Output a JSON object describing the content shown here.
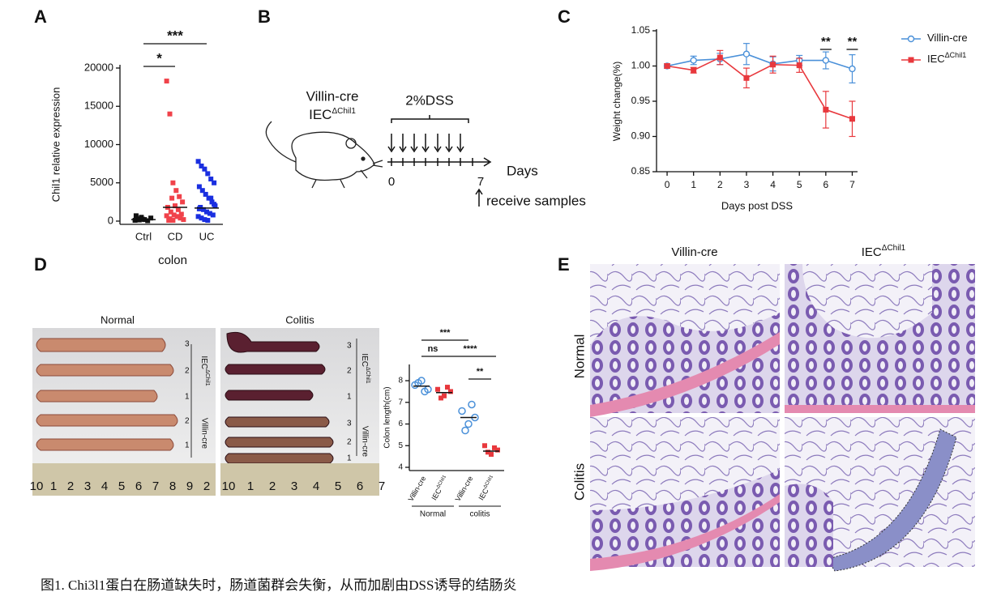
{
  "panel_labels": [
    "A",
    "B",
    "C",
    "D",
    "E"
  ],
  "chart_data": [
    {
      "type": "strip",
      "ylabel": "Chil1 relative expression",
      "xlabel": "colon",
      "categories": [
        "Ctrl",
        "CD",
        "UC"
      ],
      "colors": [
        "#111111",
        "#f0424a",
        "#1a2fe0"
      ],
      "points": [
        [
          100,
          300,
          500,
          200,
          50,
          400,
          700,
          150,
          250
        ],
        [
          18300,
          14000,
          5000,
          4000,
          3200,
          2500,
          1800,
          1200,
          800,
          600,
          400,
          200,
          100,
          3000,
          2000,
          1500,
          900,
          700,
          300,
          100
        ],
        [
          7800,
          7200,
          6800,
          6200,
          5500,
          5000,
          4500,
          4000,
          3500,
          3000,
          2500,
          2000,
          1800,
          1500,
          1200,
          1000,
          800,
          600,
          400,
          200,
          100,
          3000,
          2200,
          1600
        ]
      ],
      "means": [
        200,
        1800,
        1700
      ],
      "ylim": [
        0,
        20000
      ],
      "yticks": [
        0,
        5000,
        10000,
        15000,
        20000
      ],
      "annotations": [
        "*",
        "***"
      ]
    },
    {
      "type": "line",
      "xlabel": "Days post DSS",
      "ylabel": "Weight change(%)",
      "x": [
        0,
        1,
        2,
        3,
        4,
        5,
        6,
        7
      ],
      "xlim": [
        -0.4,
        7.2
      ],
      "xticks": [
        0,
        1,
        2,
        3,
        4,
        5,
        6,
        7
      ],
      "ylim": [
        0.85,
        1.05
      ],
      "yticks": [
        {
          "value": 0.85,
          "label": "0.85"
        },
        {
          "value": 0.9,
          "label": "0.90"
        },
        {
          "value": 0.95,
          "label": "0.95"
        },
        {
          "value": 1.0,
          "label": "1.00"
        },
        {
          "value": 1.05,
          "label": "1.05"
        }
      ],
      "series": [
        {
          "name": "Villin-cre",
          "color": "#4a90d9",
          "marker": "circle",
          "values": [
            1.0,
            1.008,
            1.01,
            1.017,
            1.003,
            1.008,
            1.008,
            0.996
          ],
          "errors": [
            0.003,
            0.006,
            0.008,
            0.015,
            0.01,
            0.007,
            0.012,
            0.02
          ]
        },
        {
          "name": "IEC",
          "name_sup": "ΔChil1",
          "color": "#e8383d",
          "marker": "square",
          "values": [
            1.0,
            0.994,
            1.012,
            0.983,
            1.002,
            1.001,
            0.938,
            0.925
          ],
          "errors": [
            0.003,
            0.004,
            0.01,
            0.014,
            0.012,
            0.01,
            0.026,
            0.025
          ]
        }
      ],
      "annotations": [
        {
          "x": 6,
          "text": "**"
        },
        {
          "x": 7,
          "text": "**"
        }
      ],
      "legend": "upper right"
    },
    {
      "type": "strip",
      "ylabel": "Colon length(cm)",
      "categories": [
        {
          "label": "Villin-cre"
        },
        {
          "label": "IEC",
          "sup": "ΔChil1"
        },
        {
          "label": "Villin-cre"
        },
        {
          "label": "IEC",
          "sup": "ΔChil1"
        }
      ],
      "groups": [
        "Normal",
        "colitis"
      ],
      "colors": [
        "#4a90d9",
        "#e8383d",
        "#4a90d9",
        "#e8383d"
      ],
      "markers": [
        "circle",
        "square",
        "circle",
        "square"
      ],
      "points": [
        [
          7.8,
          8.0,
          7.6,
          7.9,
          7.5
        ],
        [
          7.6,
          7.3,
          7.5,
          7.2,
          7.7
        ],
        [
          6.6,
          6.0,
          6.3,
          5.7,
          6.9
        ],
        [
          5.0,
          4.6,
          4.8,
          4.7,
          4.9
        ]
      ],
      "means": [
        7.75,
        7.45,
        6.3,
        4.75
      ],
      "ylim": [
        4,
        8.6
      ],
      "yticks": [
        4,
        5,
        6,
        7,
        8
      ],
      "annotations": [
        "***",
        "ns",
        "****",
        "**"
      ]
    }
  ],
  "panel_b": {
    "line1": "Villin-cre",
    "line2": "IEC",
    "line2_sup": "ΔChil1",
    "treatment": "2%DSS",
    "timeline_start": "0",
    "timeline_end": "7",
    "timeline_unit": "Days",
    "endpoint": "receive samples"
  },
  "panel_d_photos": {
    "titles": [
      "Normal",
      "Colitis"
    ],
    "left_numbers": [
      "3",
      "2",
      "1",
      "2",
      "1"
    ],
    "right_numbers": [
      "3",
      "2",
      "1",
      "3",
      "2",
      "1"
    ],
    "genotype_label": "IEC",
    "genotype_sup": "ΔChil1",
    "control_label": "Villin-cre",
    "ruler_left": [
      "10",
      "1",
      "2",
      "3",
      "4",
      "5",
      "6",
      "7",
      "8",
      "9",
      "2"
    ],
    "ruler_right": [
      "10",
      "1",
      "2",
      "3",
      "4",
      "5",
      "6",
      "7"
    ]
  },
  "panel_e": {
    "columns": [
      {
        "label": "Villin-cre"
      },
      {
        "label": "IEC",
        "sup": "ΔChil1"
      }
    ],
    "rows": [
      "Normal",
      "Colitis"
    ]
  },
  "caption": "图1. Chi3l1蛋白在肠道缺失时，肠道菌群会失衡，从而加剧由DSS诱导的结肠炎"
}
